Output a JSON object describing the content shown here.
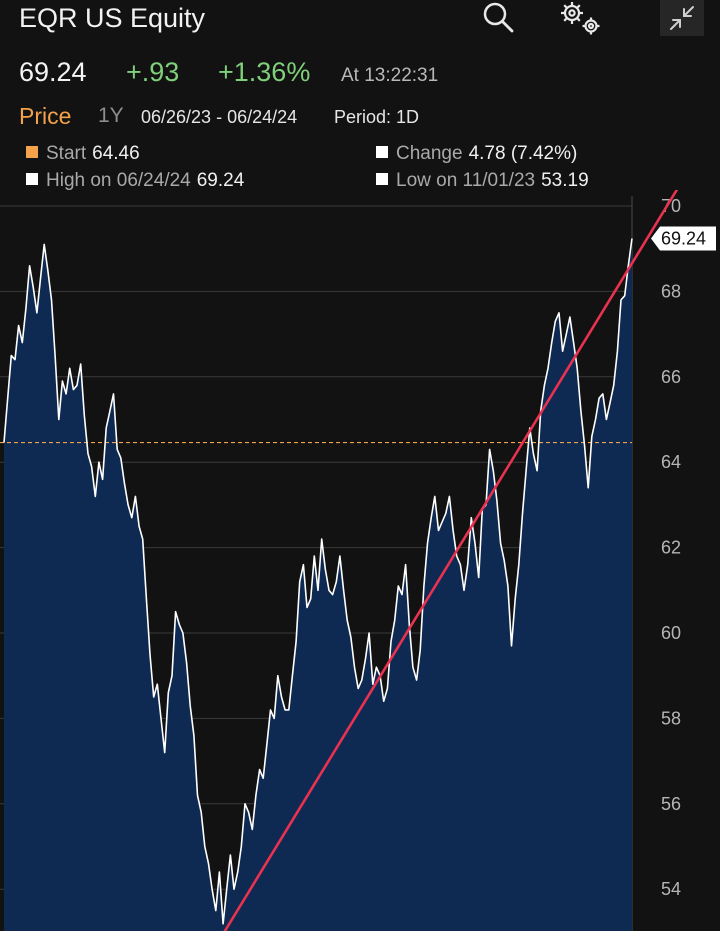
{
  "header": {
    "title": "EQR US Equity",
    "icons": [
      "search-icon",
      "settings-icon",
      "collapse-icon"
    ]
  },
  "quote": {
    "last": "69.24",
    "change": "+.93",
    "change_pct": "+1.36%",
    "as_of": "At 13:22:31"
  },
  "controls": {
    "tab_price": "Price",
    "tab_1y": "1Y",
    "range": "06/26/23 - 06/24/24",
    "period": "Period: 1D"
  },
  "stats": {
    "start_label": "Start",
    "start_value": "64.46",
    "change_label": "Change",
    "change_value": "4.78 (7.42%)",
    "high_label": "High on 06/24/24",
    "high_value": "69.24",
    "low_label": "Low on 11/01/23",
    "low_value": "53.19"
  },
  "colors": {
    "background": "#121212",
    "area_fill": "#0f2a52",
    "price_line": "#ffffff",
    "start_line": "#f2a24a",
    "trend_line": "#e8324f",
    "positive": "#7fd07a",
    "accent": "#f2a24a"
  },
  "chart_data": {
    "type": "area",
    "title": "",
    "xlabel": "",
    "ylabel": "",
    "x_range": [
      "06/26/23",
      "06/24/24"
    ],
    "ylim": [
      53,
      70
    ],
    "y_ticks": [
      "54",
      "56",
      "58",
      "60",
      "62",
      "64",
      "66",
      "68",
      "70"
    ],
    "last_label": "69.24",
    "start_ref": 64.46,
    "series": [
      {
        "values": [
          64.46,
          65.5,
          66.5,
          66.4,
          67.2,
          66.8,
          67.6,
          68.6,
          68.1,
          67.5,
          68.3,
          69.1,
          68.5,
          67.8,
          66.5,
          65.0,
          65.9,
          65.6,
          66.2,
          65.7,
          65.8,
          66.3,
          65.1,
          64.2,
          63.9,
          63.2,
          64.0,
          63.6,
          64.8,
          65.2,
          65.6,
          64.3,
          64.1,
          63.5,
          63.0,
          62.7,
          63.2,
          62.5,
          62.2,
          60.8,
          59.5,
          58.5,
          58.8,
          58.0,
          57.2,
          58.6,
          59.0,
          60.5,
          60.2,
          60.0,
          59.3,
          58.3,
          57.6,
          56.2,
          55.8,
          55.0,
          54.6,
          54.0,
          53.5,
          54.4,
          53.19,
          54.0,
          54.8,
          54.0,
          54.4,
          55.0,
          56.0,
          55.8,
          55.4,
          56.2,
          56.8,
          56.6,
          57.4,
          58.2,
          58.0,
          59.0,
          58.5,
          58.2,
          58.2,
          59.0,
          59.8,
          61.2,
          61.6,
          60.6,
          60.8,
          61.8,
          61.0,
          62.2,
          61.5,
          61.0,
          60.9,
          61.2,
          61.8,
          61.0,
          60.3,
          59.9,
          59.2,
          58.7,
          58.9,
          59.4,
          60.0,
          58.8,
          59.2,
          59.0,
          58.4,
          58.7,
          59.8,
          60.3,
          61.1,
          60.9,
          61.6,
          60.2,
          59.2,
          58.9,
          59.6,
          61.1,
          62.1,
          62.7,
          63.2,
          62.4,
          62.6,
          62.8,
          63.2,
          62.4,
          61.8,
          61.6,
          61.0,
          61.6,
          62.7,
          62.1,
          61.3,
          62.9,
          63.0,
          64.3,
          63.8,
          63.1,
          62.1,
          61.7,
          61.1,
          59.7,
          60.8,
          61.6,
          62.8,
          63.8,
          64.8,
          64.2,
          63.8,
          65.2,
          65.8,
          66.2,
          66.8,
          67.3,
          67.5,
          66.6,
          67.0,
          67.4,
          66.8,
          66.2,
          65.2,
          64.4,
          63.4,
          64.6,
          65.0,
          65.5,
          65.6,
          65.0,
          65.4,
          65.8,
          66.6,
          67.8,
          67.9,
          68.6,
          69.24
        ]
      }
    ],
    "trend_line": {
      "from": [
        0.355,
        53.0
      ],
      "to": [
        1.08,
        70.6
      ]
    },
    "grid": "horizontal",
    "legend": "none"
  }
}
